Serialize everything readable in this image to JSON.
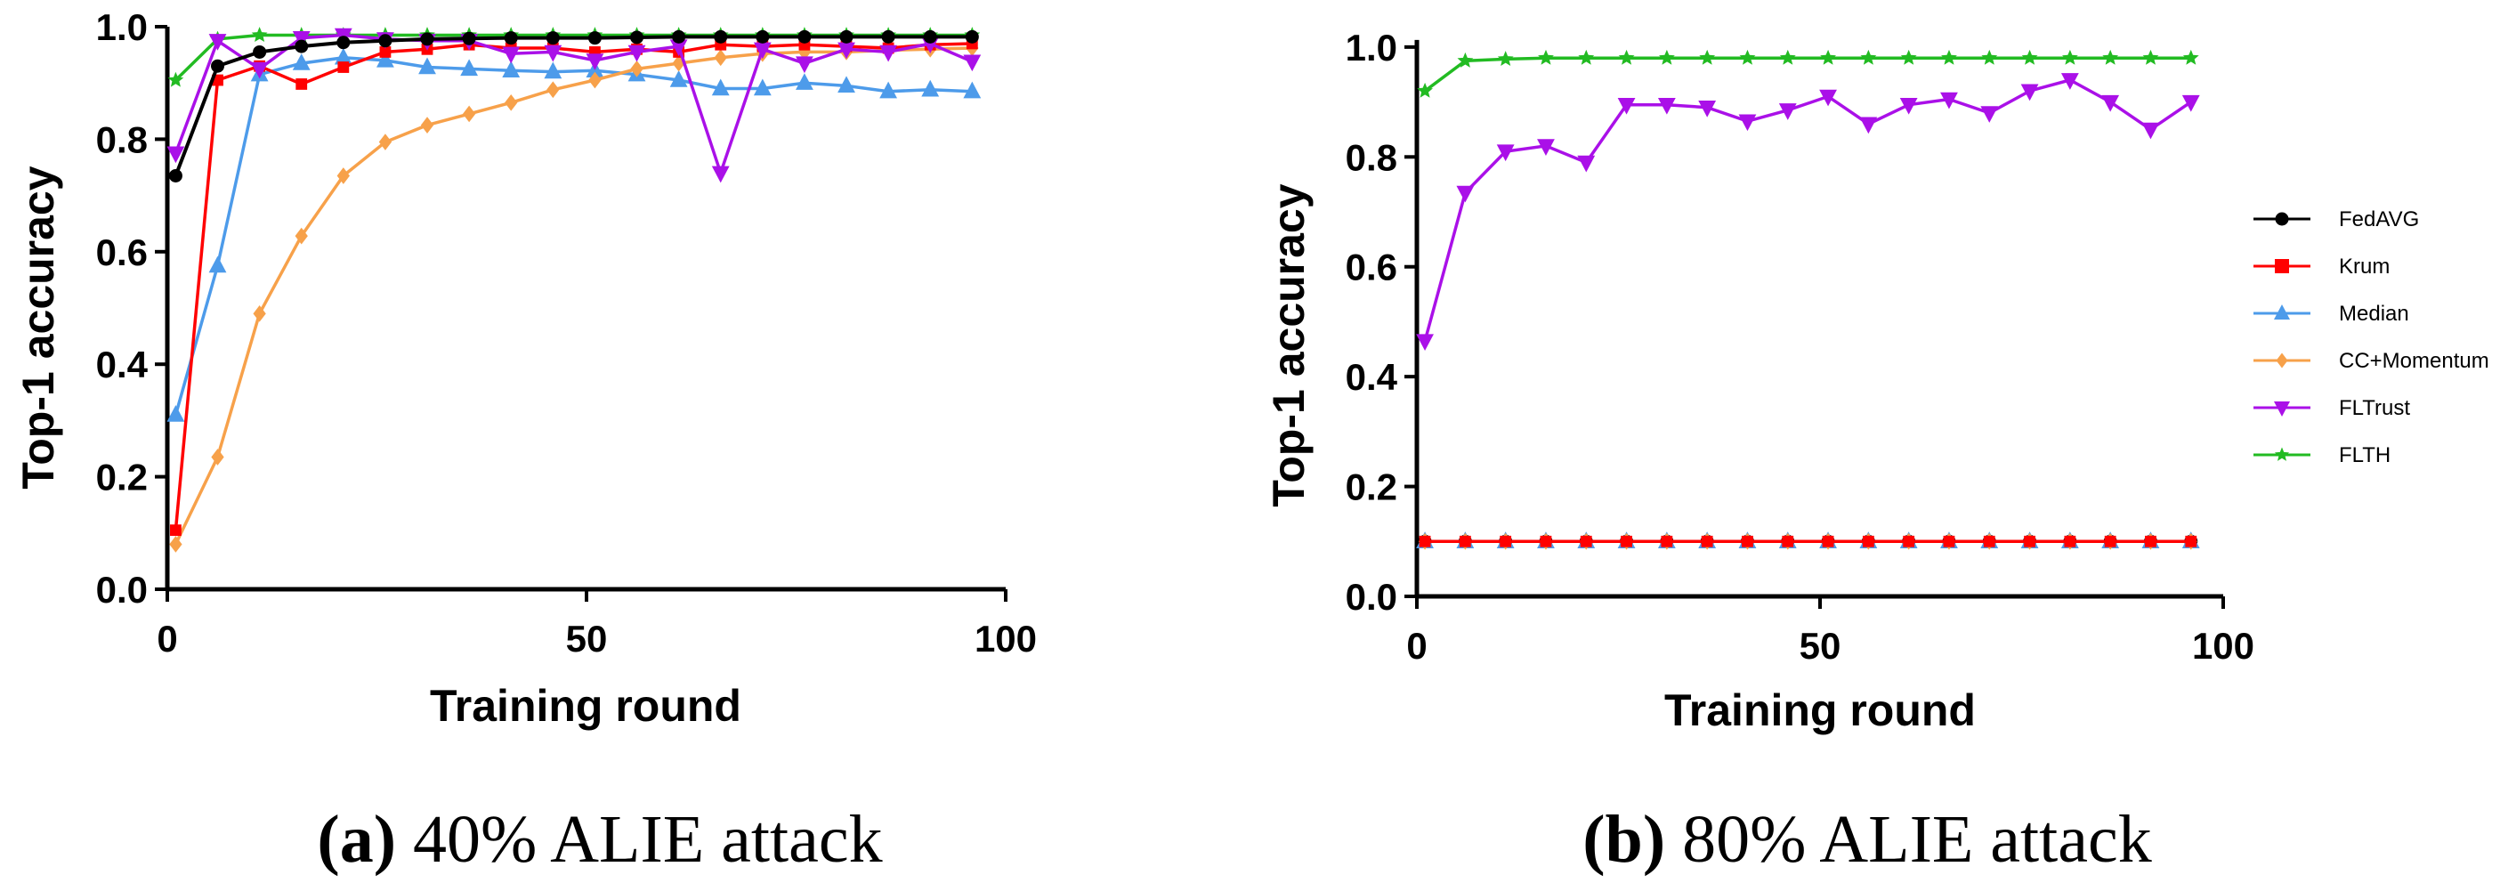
{
  "colors": {
    "FedAVG": "#000000",
    "Krum": "#ff0000",
    "Median": "#4d9bea",
    "CC+Momentum": "#f7a14a",
    "FLTrust": "#aa10e8",
    "FLTH": "#22bb22"
  },
  "markers": {
    "FedAVG": "circle",
    "Krum": "square",
    "Median": "triangle-up",
    "CC+Momentum": "diamond",
    "FLTrust": "triangle-down",
    "FLTH": "star"
  },
  "legend": {
    "entries": [
      "FedAVG",
      "Krum",
      "Median",
      "CC+Momentum",
      "FLTrust",
      "FLTH"
    ]
  },
  "chart_data": [
    {
      "type": "line",
      "caption_letter": "(a)",
      "caption_text": " 40% ALIE attack",
      "title": "",
      "xlabel": "Training round",
      "ylabel": "Top-1 accuracy",
      "xlim": [
        0,
        100
      ],
      "ylim": [
        0.0,
        1.0
      ],
      "xticks": [
        "0",
        "50",
        "100"
      ],
      "yticks": [
        "0.0",
        "0.2",
        "0.4",
        "0.6",
        "0.8",
        "1.0"
      ],
      "x": [
        1,
        6,
        11,
        16,
        21,
        26,
        31,
        36,
        41,
        46,
        51,
        56,
        61,
        66,
        71,
        76,
        81,
        86,
        91,
        96
      ],
      "series": [
        {
          "name": "FedAVG",
          "values": [
            0.735,
            0.93,
            0.955,
            0.965,
            0.972,
            0.975,
            0.978,
            0.979,
            0.98,
            0.98,
            0.98,
            0.981,
            0.982,
            0.982,
            0.982,
            0.982,
            0.982,
            0.982,
            0.982,
            0.982
          ]
        },
        {
          "name": "Krum",
          "values": [
            0.105,
            0.905,
            0.93,
            0.898,
            0.928,
            0.955,
            0.96,
            0.968,
            0.962,
            0.962,
            0.955,
            0.96,
            0.955,
            0.968,
            0.965,
            0.968,
            0.965,
            0.962,
            0.968,
            0.97
          ]
        },
        {
          "name": "Median",
          "values": [
            0.31,
            0.575,
            0.915,
            0.935,
            0.945,
            0.94,
            0.928,
            0.925,
            0.922,
            0.92,
            0.922,
            0.915,
            0.905,
            0.89,
            0.89,
            0.9,
            0.895,
            0.885,
            0.888,
            0.885
          ]
        },
        {
          "name": "CC+Momentum",
          "values": [
            0.08,
            0.235,
            0.49,
            0.628,
            0.735,
            0.795,
            0.825,
            0.845,
            0.865,
            0.888,
            0.905,
            0.925,
            0.935,
            0.945,
            0.952,
            0.955,
            0.955,
            0.958,
            0.96,
            0.962
          ]
        },
        {
          "name": "FLTrust",
          "values": [
            0.775,
            0.975,
            0.925,
            0.98,
            0.985,
            0.978,
            0.975,
            0.975,
            0.952,
            0.955,
            0.94,
            0.955,
            0.965,
            0.74,
            0.96,
            0.935,
            0.96,
            0.955,
            0.97,
            0.938
          ]
        },
        {
          "name": "FLTH",
          "values": [
            0.905,
            0.978,
            0.985,
            0.985,
            0.985,
            0.985,
            0.985,
            0.985,
            0.985,
            0.985,
            0.985,
            0.985,
            0.985,
            0.985,
            0.985,
            0.985,
            0.985,
            0.985,
            0.985,
            0.985
          ]
        }
      ]
    },
    {
      "type": "line",
      "caption_letter": "(b)",
      "caption_text": " 80% ALIE attack",
      "title": "",
      "xlabel": "Training round",
      "ylabel": "Top-1 accuracy",
      "xlim": [
        0,
        100
      ],
      "ylim": [
        0.0,
        1.05
      ],
      "xticks": [
        "0",
        "50",
        "100"
      ],
      "yticks": [
        "0.0",
        "0.2",
        "0.4",
        "0.6",
        "0.8",
        "1.0"
      ],
      "x": [
        1,
        6,
        11,
        16,
        21,
        26,
        31,
        36,
        41,
        46,
        51,
        56,
        61,
        66,
        71,
        76,
        81,
        86,
        91,
        96
      ],
      "series": [
        {
          "name": "FedAVG",
          "values": [
            0.1,
            0.1,
            0.1,
            0.1,
            0.1,
            0.1,
            0.1,
            0.1,
            0.1,
            0.1,
            0.1,
            0.1,
            0.1,
            0.1,
            0.1,
            0.1,
            0.1,
            0.1,
            0.1,
            0.1
          ]
        },
        {
          "name": "Krum",
          "values": [
            0.1,
            0.1,
            0.1,
            0.1,
            0.1,
            0.1,
            0.1,
            0.1,
            0.1,
            0.1,
            0.1,
            0.1,
            0.1,
            0.1,
            0.1,
            0.1,
            0.1,
            0.1,
            0.1,
            0.1
          ]
        },
        {
          "name": "Median",
          "values": [
            0.1,
            0.1,
            0.1,
            0.1,
            0.1,
            0.1,
            0.1,
            0.1,
            0.1,
            0.1,
            0.1,
            0.1,
            0.1,
            0.1,
            0.1,
            0.1,
            0.1,
            0.1,
            0.1,
            0.1
          ]
        },
        {
          "name": "CC+Momentum",
          "values": [
            0.1,
            0.1,
            0.1,
            0.1,
            0.1,
            0.1,
            0.1,
            0.1,
            0.1,
            0.1,
            0.1,
            0.1,
            0.1,
            0.1,
            0.1,
            0.1,
            0.1,
            0.1,
            0.1,
            0.1
          ]
        },
        {
          "name": "FLTrust",
          "values": [
            0.465,
            0.735,
            0.81,
            0.82,
            0.79,
            0.895,
            0.895,
            0.89,
            0.865,
            0.885,
            0.91,
            0.86,
            0.895,
            0.905,
            0.88,
            0.92,
            0.94,
            0.9,
            0.85,
            0.9
          ]
        },
        {
          "name": "FLTH",
          "values": [
            0.92,
            0.975,
            0.978,
            0.98,
            0.98,
            0.98,
            0.98,
            0.98,
            0.98,
            0.98,
            0.98,
            0.98,
            0.98,
            0.98,
            0.98,
            0.98,
            0.98,
            0.98,
            0.98,
            0.98
          ]
        }
      ]
    }
  ]
}
